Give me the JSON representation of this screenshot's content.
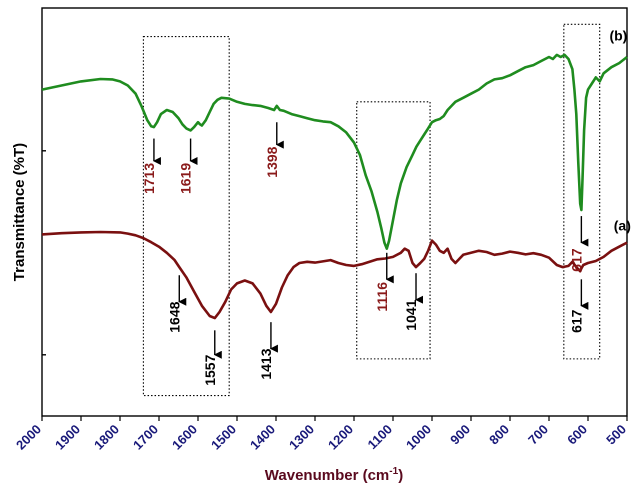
{
  "chart_data": {
    "type": "line",
    "xlabel": "Wavenumber (cm",
    "xlabel_sup": "-1",
    "xlabel_end": ")",
    "ylabel": "Transmittance (%T)",
    "xlim": [
      2000,
      500
    ],
    "x_reversed": true,
    "x_ticks": [
      2000,
      1900,
      1800,
      1700,
      1600,
      1500,
      1400,
      1300,
      1200,
      1100,
      1000,
      900,
      800,
      700,
      600,
      500
    ],
    "ylim": [
      0,
      100
    ],
    "y_ticks": [
      15,
      65
    ],
    "colors": {
      "a": "#7a1010",
      "b": "#1f8c1f",
      "axis_text": "#1a1a7a",
      "label_a": "#000000",
      "label_b": "#8a1a1a"
    },
    "series": [
      {
        "name": "(a)",
        "color": "#7a1010",
        "x": [
          2000,
          1950,
          1900,
          1850,
          1800,
          1780,
          1760,
          1740,
          1720,
          1700,
          1680,
          1660,
          1648,
          1630,
          1610,
          1590,
          1570,
          1557,
          1545,
          1530,
          1515,
          1500,
          1480,
          1460,
          1440,
          1425,
          1413,
          1400,
          1385,
          1370,
          1355,
          1340,
          1320,
          1300,
          1280,
          1260,
          1240,
          1220,
          1200,
          1180,
          1160,
          1140,
          1120,
          1100,
          1080,
          1070,
          1060,
          1050,
          1041,
          1030,
          1020,
          1010,
          1000,
          990,
          980,
          970,
          960,
          950,
          940,
          930,
          920,
          900,
          880,
          860,
          840,
          820,
          800,
          780,
          760,
          740,
          720,
          700,
          680,
          665,
          650,
          640,
          630,
          620,
          617,
          612,
          600,
          580,
          560,
          540,
          520,
          500
        ],
        "y": [
          44.5,
          44.8,
          45.0,
          45.1,
          45.0,
          44.7,
          44.3,
          43.6,
          42.6,
          41.5,
          40.0,
          38.2,
          36.5,
          34.0,
          30.5,
          27.0,
          24.5,
          24.0,
          25.5,
          28.0,
          31.0,
          32.5,
          33.2,
          32.5,
          30.0,
          27.0,
          25.5,
          27.5,
          31.5,
          34.5,
          36.5,
          37.5,
          37.8,
          37.6,
          37.9,
          38.2,
          37.5,
          37.0,
          36.8,
          37.2,
          37.8,
          38.4,
          38.6,
          39.0,
          40.0,
          41.0,
          40.5,
          37.5,
          36.5,
          37.5,
          38.5,
          40.5,
          43.0,
          42.0,
          40.5,
          40.0,
          41.0,
          38.5,
          37.5,
          38.5,
          39.5,
          40.0,
          40.5,
          40.2,
          39.5,
          39.8,
          40.3,
          40.0,
          39.6,
          39.9,
          39.5,
          38.8,
          37.0,
          36.5,
          36.8,
          37.8,
          36.5,
          35.5,
          36.2,
          37.0,
          37.5,
          38.0,
          39.0,
          40.5,
          41.5,
          42.5
        ]
      },
      {
        "name": "(b)",
        "color": "#1f8c1f",
        "x": [
          2000,
          1950,
          1900,
          1850,
          1820,
          1800,
          1780,
          1760,
          1745,
          1730,
          1720,
          1713,
          1705,
          1695,
          1680,
          1665,
          1650,
          1640,
          1630,
          1619,
          1610,
          1600,
          1595,
          1590,
          1580,
          1570,
          1560,
          1550,
          1540,
          1520,
          1500,
          1480,
          1460,
          1440,
          1420,
          1405,
          1398,
          1390,
          1380,
          1360,
          1340,
          1320,
          1300,
          1280,
          1260,
          1240,
          1220,
          1200,
          1185,
          1170,
          1155,
          1140,
          1130,
          1122,
          1116,
          1110,
          1100,
          1090,
          1080,
          1065,
          1050,
          1040,
          1030,
          1020,
          1010,
          1000,
          990,
          980,
          970,
          960,
          950,
          940,
          930,
          920,
          900,
          880,
          860,
          840,
          820,
          800,
          780,
          760,
          740,
          720,
          700,
          690,
          680,
          670,
          660,
          650,
          640,
          635,
          630,
          625,
          620,
          617,
          614,
          610,
          605,
          600,
          590,
          580,
          570,
          560,
          540,
          520,
          500
        ],
        "y": [
          80.0,
          81.0,
          82.0,
          82.6,
          82.5,
          82.0,
          81.0,
          79.0,
          76.0,
          72.5,
          71.0,
          70.8,
          72.0,
          74.0,
          75.0,
          74.5,
          73.0,
          71.5,
          70.5,
          70.0,
          70.8,
          72.0,
          71.5,
          71.2,
          72.5,
          74.5,
          76.5,
          77.5,
          78.0,
          77.8,
          77.0,
          76.5,
          76.2,
          76.0,
          75.5,
          75.0,
          76.0,
          75.0,
          74.8,
          74.0,
          73.5,
          73.0,
          72.5,
          72.2,
          72.0,
          71.0,
          69.5,
          67.0,
          64.0,
          59.0,
          55.0,
          50.0,
          46.0,
          42.5,
          41.0,
          43.0,
          48.0,
          53.0,
          57.0,
          61.0,
          64.0,
          66.0,
          67.5,
          69.0,
          70.5,
          72.0,
          72.5,
          72.8,
          73.5,
          75.0,
          76.0,
          77.0,
          77.5,
          78.0,
          79.0,
          80.0,
          81.5,
          82.5,
          82.8,
          83.5,
          84.5,
          85.5,
          86.0,
          87.0,
          88.0,
          87.5,
          88.5,
          88.0,
          88.5,
          87.5,
          85.0,
          80.0,
          74.0,
          62.0,
          52.0,
          50.5,
          58.0,
          70.0,
          78.0,
          80.0,
          81.5,
          83.0,
          82.0,
          84.0,
          85.5,
          86.5,
          88.0
        ]
      }
    ],
    "curve_labels": [
      {
        "text": "(a)",
        "x": 512,
        "y": 45.5
      },
      {
        "text": "(b)",
        "x": 522,
        "y": 92
      }
    ],
    "annotations": [
      {
        "text": "1713",
        "series": "b",
        "x": 1713,
        "arrow_top": 68,
        "arrow_bottom": 62.5,
        "text_y": 57
      },
      {
        "text": "1619",
        "series": "b",
        "x": 1619,
        "arrow_top": 68,
        "arrow_bottom": 62.5,
        "text_y": 57
      },
      {
        "text": "1398",
        "series": "b",
        "x": 1398,
        "arrow_top": 72,
        "arrow_bottom": 66.5,
        "text_y": 61
      },
      {
        "text": "1116",
        "series": "b",
        "x": 1116,
        "arrow_top": 40,
        "arrow_bottom": 33.5,
        "text_y": 28
      },
      {
        "text": "617",
        "series": "b",
        "x": 617,
        "arrow_top": 49,
        "arrow_bottom": 42.5,
        "text_y": 37
      },
      {
        "text": "1648",
        "series": "a",
        "x": 1648,
        "arrow_top": 34.5,
        "arrow_bottom": 28,
        "text_y": 23
      },
      {
        "text": "1557",
        "series": "a",
        "x": 1557,
        "arrow_top": 21,
        "arrow_bottom": 15,
        "text_y": 10
      },
      {
        "text": "1413",
        "series": "a",
        "x": 1413,
        "arrow_top": 23,
        "arrow_bottom": 16.5,
        "text_y": 11.5
      },
      {
        "text": "1041",
        "series": "a",
        "x": 1041,
        "arrow_top": 35,
        "arrow_bottom": 28.5,
        "text_y": 23.5
      },
      {
        "text": "617",
        "series": "a",
        "x": 617,
        "arrow_top": 33.5,
        "arrow_bottom": 27,
        "text_y": 22
      }
    ],
    "dotted_boxes": [
      {
        "x1": 1740,
        "x2": 1520,
        "y1": 93,
        "y2": 5
      },
      {
        "x1": 1193,
        "x2": 1005,
        "y1": 77,
        "y2": 14
      },
      {
        "x1": 662,
        "x2": 570,
        "y1": 96,
        "y2": 14
      }
    ]
  }
}
